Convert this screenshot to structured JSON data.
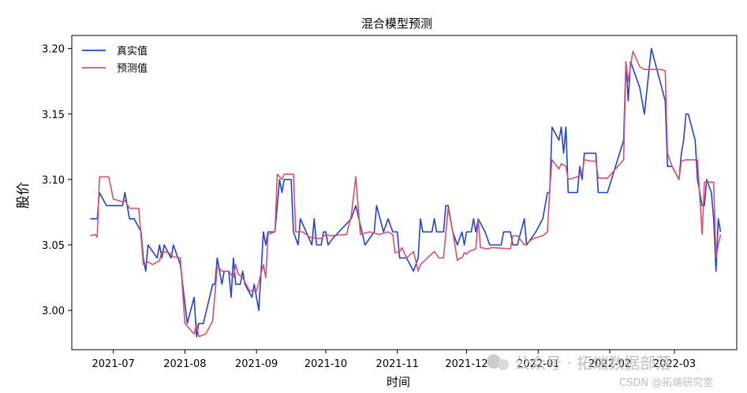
{
  "chart_data": {
    "type": "line",
    "title": "混合模型预测",
    "xlabel": "时间",
    "ylabel": "股价",
    "xlim": [
      "2021-06-13",
      "2022-03-28"
    ],
    "ylim": [
      2.97,
      3.21
    ],
    "x_ticks": [
      "2021-07",
      "2021-08",
      "2021-09",
      "2021-10",
      "2021-11",
      "2021-12",
      "2022-01",
      "2022-02",
      "2022-03"
    ],
    "x_tick_dates": [
      "2021-07-01",
      "2021-08-01",
      "2021-09-01",
      "2021-10-01",
      "2021-11-01",
      "2021-12-01",
      "2022-01-01",
      "2022-02-01",
      "2022-03-01"
    ],
    "y_ticks": [
      "3.00",
      "3.05",
      "3.10",
      "3.15",
      "3.20"
    ],
    "y_tick_values": [
      3.0,
      3.05,
      3.1,
      3.15,
      3.2
    ],
    "legend_position": "top-left",
    "grid": false,
    "series": [
      {
        "name": "真实值",
        "color": "#2342d8",
        "points": [
          [
            "2021-06-21",
            3.07
          ],
          [
            "2021-06-24",
            3.07
          ],
          [
            "2021-06-25",
            3.09
          ],
          [
            "2021-06-28",
            3.08
          ],
          [
            "2021-07-01",
            3.08
          ],
          [
            "2021-07-05",
            3.08
          ],
          [
            "2021-07-06",
            3.09
          ],
          [
            "2021-07-08",
            3.07
          ],
          [
            "2021-07-10",
            3.07
          ],
          [
            "2021-07-13",
            3.06
          ],
          [
            "2021-07-14",
            3.04
          ],
          [
            "2021-07-15",
            3.03
          ],
          [
            "2021-07-16",
            3.05
          ],
          [
            "2021-07-20",
            3.04
          ],
          [
            "2021-07-21",
            3.05
          ],
          [
            "2021-07-22",
            3.04
          ],
          [
            "2021-07-23",
            3.05
          ],
          [
            "2021-07-26",
            3.04
          ],
          [
            "2021-07-27",
            3.05
          ],
          [
            "2021-07-29",
            3.04
          ],
          [
            "2021-07-30",
            3.035
          ],
          [
            "2021-08-02",
            2.99
          ],
          [
            "2021-08-05",
            3.01
          ],
          [
            "2021-08-06",
            2.98
          ],
          [
            "2021-08-07",
            2.99
          ],
          [
            "2021-08-09",
            2.99
          ],
          [
            "2021-08-13",
            3.02
          ],
          [
            "2021-08-14",
            3.02
          ],
          [
            "2021-08-15",
            3.04
          ],
          [
            "2021-08-16",
            3.03
          ],
          [
            "2021-08-17",
            3.02
          ],
          [
            "2021-08-18",
            3.03
          ],
          [
            "2021-08-20",
            3.03
          ],
          [
            "2021-08-21",
            3.01
          ],
          [
            "2021-08-22",
            3.04
          ],
          [
            "2021-08-23",
            3.02
          ],
          [
            "2021-08-25",
            3.02
          ],
          [
            "2021-08-26",
            3.03
          ],
          [
            "2021-08-27",
            3.02
          ],
          [
            "2021-08-30",
            3.01
          ],
          [
            "2021-08-31",
            3.02
          ],
          [
            "2021-09-02",
            3.0
          ],
          [
            "2021-09-04",
            3.06
          ],
          [
            "2021-09-05",
            3.05
          ],
          [
            "2021-09-06",
            3.06
          ],
          [
            "2021-09-09",
            3.06
          ],
          [
            "2021-09-11",
            3.1
          ],
          [
            "2021-09-12",
            3.09
          ],
          [
            "2021-09-13",
            3.1
          ],
          [
            "2021-09-16",
            3.1
          ],
          [
            "2021-09-17",
            3.06
          ],
          [
            "2021-09-19",
            3.05
          ],
          [
            "2021-09-20",
            3.07
          ],
          [
            "2021-09-25",
            3.05
          ],
          [
            "2021-09-26",
            3.07
          ],
          [
            "2021-09-27",
            3.05
          ],
          [
            "2021-09-29",
            3.05
          ],
          [
            "2021-09-30",
            3.06
          ],
          [
            "2021-10-01",
            3.06
          ],
          [
            "2021-10-02",
            3.05
          ],
          [
            "2021-10-04",
            3.055
          ],
          [
            "2021-10-12",
            3.07
          ],
          [
            "2021-10-14",
            3.08
          ],
          [
            "2021-10-18",
            3.05
          ],
          [
            "2021-10-22",
            3.06
          ],
          [
            "2021-10-23",
            3.08
          ],
          [
            "2021-10-26",
            3.06
          ],
          [
            "2021-10-28",
            3.07
          ],
          [
            "2021-10-30",
            3.06
          ],
          [
            "2021-11-01",
            3.06
          ],
          [
            "2021-11-02",
            3.04
          ],
          [
            "2021-11-05",
            3.04
          ],
          [
            "2021-11-08",
            3.03
          ],
          [
            "2021-11-10",
            3.04
          ],
          [
            "2021-11-11",
            3.07
          ],
          [
            "2021-11-12",
            3.06
          ],
          [
            "2021-11-16",
            3.06
          ],
          [
            "2021-11-17",
            3.07
          ],
          [
            "2021-11-18",
            3.06
          ],
          [
            "2021-11-21",
            3.06
          ],
          [
            "2021-11-22",
            3.08
          ],
          [
            "2021-11-23",
            3.08
          ],
          [
            "2021-11-25",
            3.06
          ],
          [
            "2021-11-27",
            3.05
          ],
          [
            "2021-11-29",
            3.06
          ],
          [
            "2021-11-30",
            3.05
          ],
          [
            "2021-12-01",
            3.06
          ],
          [
            "2021-12-03",
            3.06
          ],
          [
            "2021-12-04",
            3.07
          ],
          [
            "2021-12-05",
            3.06
          ],
          [
            "2021-12-06",
            3.07
          ],
          [
            "2021-12-09",
            3.06
          ],
          [
            "2021-12-11",
            3.05
          ],
          [
            "2021-12-16",
            3.05
          ],
          [
            "2021-12-17",
            3.06
          ],
          [
            "2021-12-20",
            3.06
          ],
          [
            "2021-12-21",
            3.05
          ],
          [
            "2021-12-23",
            3.05
          ],
          [
            "2021-12-26",
            3.07
          ],
          [
            "2021-12-27",
            3.05
          ],
          [
            "2021-12-31",
            3.06
          ],
          [
            "2022-01-03",
            3.07
          ],
          [
            "2022-01-05",
            3.09
          ],
          [
            "2022-01-06",
            3.09
          ],
          [
            "2022-01-07",
            3.14
          ],
          [
            "2022-01-10",
            3.13
          ],
          [
            "2022-01-11",
            3.14
          ],
          [
            "2022-01-12",
            3.12
          ],
          [
            "2022-01-13",
            3.14
          ],
          [
            "2022-01-14",
            3.09
          ],
          [
            "2022-01-18",
            3.09
          ],
          [
            "2022-01-19",
            3.11
          ],
          [
            "2022-01-20",
            3.1
          ],
          [
            "2022-01-21",
            3.12
          ],
          [
            "2022-01-26",
            3.12
          ],
          [
            "2022-01-27",
            3.09
          ],
          [
            "2022-01-31",
            3.09
          ],
          [
            "2022-02-07",
            3.13
          ],
          [
            "2022-02-08",
            3.19
          ],
          [
            "2022-02-09",
            3.16
          ],
          [
            "2022-02-10",
            3.19
          ],
          [
            "2022-02-14",
            3.17
          ],
          [
            "2022-02-16",
            3.15
          ],
          [
            "2022-02-19",
            3.2
          ],
          [
            "2022-02-25",
            3.16
          ],
          [
            "2022-02-26",
            3.11
          ],
          [
            "2022-02-28",
            3.11
          ],
          [
            "2022-03-03",
            3.1
          ],
          [
            "2022-03-04",
            3.12
          ],
          [
            "2022-03-05",
            3.13
          ],
          [
            "2022-03-06",
            3.15
          ],
          [
            "2022-03-07",
            3.15
          ],
          [
            "2022-03-10",
            3.13
          ],
          [
            "2022-03-11",
            3.1
          ],
          [
            "2022-03-13",
            3.08
          ],
          [
            "2022-03-14",
            3.08
          ],
          [
            "2022-03-15",
            3.1
          ],
          [
            "2022-03-17",
            3.09
          ],
          [
            "2022-03-18",
            3.07
          ],
          [
            "2022-03-19",
            3.03
          ],
          [
            "2022-03-20",
            3.07
          ],
          [
            "2022-03-21",
            3.06
          ]
        ]
      },
      {
        "name": "预测值",
        "color": "#d9506e",
        "points": [
          [
            "2021-06-21",
            3.057
          ],
          [
            "2021-06-23",
            3.058
          ],
          [
            "2021-06-24",
            3.056
          ],
          [
            "2021-06-25",
            3.102
          ],
          [
            "2021-06-28",
            3.102
          ],
          [
            "2021-06-29",
            3.102
          ],
          [
            "2021-07-01",
            3.085
          ],
          [
            "2021-07-03",
            3.084
          ],
          [
            "2021-07-05",
            3.083
          ],
          [
            "2021-07-06",
            3.084
          ],
          [
            "2021-07-08",
            3.078
          ],
          [
            "2021-07-12",
            3.078
          ],
          [
            "2021-07-14",
            3.035
          ],
          [
            "2021-07-16",
            3.037
          ],
          [
            "2021-07-18",
            3.035
          ],
          [
            "2021-07-21",
            3.038
          ],
          [
            "2021-07-22",
            3.045
          ],
          [
            "2021-07-25",
            3.044
          ],
          [
            "2021-07-27",
            3.041
          ],
          [
            "2021-07-30",
            3.04
          ],
          [
            "2021-08-01",
            2.99
          ],
          [
            "2021-08-05",
            2.982
          ],
          [
            "2021-08-06",
            2.99
          ],
          [
            "2021-08-07",
            2.98
          ],
          [
            "2021-08-10",
            2.982
          ],
          [
            "2021-08-13",
            2.992
          ],
          [
            "2021-08-15",
            3.033
          ],
          [
            "2021-08-16",
            3.032
          ],
          [
            "2021-08-17",
            3.03
          ],
          [
            "2021-08-20",
            3.03
          ],
          [
            "2021-08-22",
            3.025
          ],
          [
            "2021-08-23",
            3.035
          ],
          [
            "2021-08-24",
            3.028
          ],
          [
            "2021-08-26",
            3.025
          ],
          [
            "2021-08-29",
            3.015
          ],
          [
            "2021-08-31",
            3.015
          ],
          [
            "2021-09-01",
            3.015
          ],
          [
            "2021-09-04",
            3.035
          ],
          [
            "2021-09-05",
            3.025
          ],
          [
            "2021-09-06",
            3.058
          ],
          [
            "2021-09-09",
            3.06
          ],
          [
            "2021-09-10",
            3.104
          ],
          [
            "2021-09-12",
            3.1
          ],
          [
            "2021-09-13",
            3.104
          ],
          [
            "2021-09-17",
            3.104
          ],
          [
            "2021-09-18",
            3.06
          ],
          [
            "2021-09-21",
            3.06
          ],
          [
            "2021-09-24",
            3.056
          ],
          [
            "2021-09-27",
            3.055
          ],
          [
            "2021-09-29",
            3.055
          ],
          [
            "2021-10-01",
            3.058
          ],
          [
            "2021-10-03",
            3.057
          ],
          [
            "2021-10-10",
            3.058
          ],
          [
            "2021-10-12",
            3.072
          ],
          [
            "2021-10-14",
            3.102
          ],
          [
            "2021-10-16",
            3.058
          ],
          [
            "2021-10-20",
            3.06
          ],
          [
            "2021-10-24",
            3.058
          ],
          [
            "2021-10-28",
            3.06
          ],
          [
            "2021-10-30",
            3.058
          ],
          [
            "2021-10-31",
            3.044
          ],
          [
            "2021-11-02",
            3.045
          ],
          [
            "2021-11-03",
            3.048
          ],
          [
            "2021-11-05",
            3.04
          ],
          [
            "2021-11-08",
            3.045
          ],
          [
            "2021-11-10",
            3.03
          ],
          [
            "2021-11-11",
            3.035
          ],
          [
            "2021-11-14",
            3.04
          ],
          [
            "2021-11-17",
            3.045
          ],
          [
            "2021-11-19",
            3.04
          ],
          [
            "2021-11-21",
            3.04
          ],
          [
            "2021-11-23",
            3.078
          ],
          [
            "2021-11-25",
            3.06
          ],
          [
            "2021-11-27",
            3.038
          ],
          [
            "2021-11-28",
            3.04
          ],
          [
            "2021-11-29",
            3.04
          ],
          [
            "2021-11-30",
            3.044
          ],
          [
            "2021-12-01",
            3.043
          ],
          [
            "2021-12-02",
            3.045
          ],
          [
            "2021-12-05",
            3.047
          ],
          [
            "2021-12-06",
            3.07
          ],
          [
            "2021-12-07",
            3.048
          ],
          [
            "2021-12-10",
            3.047
          ],
          [
            "2021-12-12",
            3.048
          ],
          [
            "2021-12-20",
            3.047
          ],
          [
            "2021-12-21",
            3.057
          ],
          [
            "2021-12-23",
            3.057
          ],
          [
            "2021-12-26",
            3.05
          ],
          [
            "2021-12-30",
            3.055
          ],
          [
            "2022-01-03",
            3.057
          ],
          [
            "2022-01-05",
            3.06
          ],
          [
            "2022-01-06",
            3.092
          ],
          [
            "2022-01-07",
            3.115
          ],
          [
            "2022-01-10",
            3.108
          ],
          [
            "2022-01-11",
            3.112
          ],
          [
            "2022-01-13",
            3.11
          ],
          [
            "2022-01-14",
            3.1
          ],
          [
            "2022-01-18",
            3.102
          ],
          [
            "2022-01-20",
            3.105
          ],
          [
            "2022-01-21",
            3.115
          ],
          [
            "2022-01-24",
            3.114
          ],
          [
            "2022-01-26",
            3.114
          ],
          [
            "2022-01-27",
            3.101
          ],
          [
            "2022-01-31",
            3.101
          ],
          [
            "2022-02-07",
            3.115
          ],
          [
            "2022-02-08",
            3.19
          ],
          [
            "2022-02-09",
            3.175
          ],
          [
            "2022-02-11",
            3.198
          ],
          [
            "2022-02-14",
            3.186
          ],
          [
            "2022-02-16",
            3.184
          ],
          [
            "2022-02-23",
            3.184
          ],
          [
            "2022-02-25",
            3.183
          ],
          [
            "2022-02-26",
            3.12
          ],
          [
            "2022-02-28",
            3.11
          ],
          [
            "2022-03-03",
            3.1
          ],
          [
            "2022-03-04",
            3.114
          ],
          [
            "2022-03-06",
            3.115
          ],
          [
            "2022-03-11",
            3.115
          ],
          [
            "2022-03-13",
            3.058
          ],
          [
            "2022-03-14",
            3.098
          ],
          [
            "2022-03-16",
            3.098
          ],
          [
            "2022-03-18",
            3.098
          ],
          [
            "2022-03-19",
            3.04
          ],
          [
            "2022-03-20",
            3.05
          ],
          [
            "2022-03-21",
            3.058
          ]
        ]
      }
    ]
  },
  "watermark": {
    "wechat": "公众号 · 拓端数据部落",
    "csdn": "CSDN @拓端研究室"
  }
}
